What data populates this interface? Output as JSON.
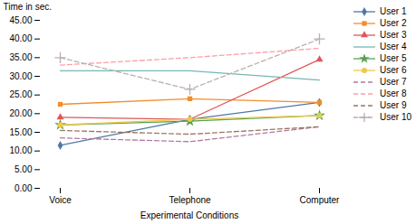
{
  "chart_data": {
    "type": "line",
    "categories": [
      "Voice",
      "Telephone",
      "Computer"
    ],
    "series": [
      {
        "name": "User 1",
        "values": [
          11.5,
          18.5,
          23.0
        ],
        "marker": "diamond",
        "line_style": "solid"
      },
      {
        "name": "User 2",
        "values": [
          22.5,
          24.0,
          23.0
        ],
        "marker": "square",
        "line_style": "solid"
      },
      {
        "name": "User 3",
        "values": [
          19.0,
          18.5,
          34.5
        ],
        "marker": "triangle",
        "line_style": "solid"
      },
      {
        "name": "User 4",
        "values": [
          31.5,
          31.5,
          29.0
        ],
        "marker": "none",
        "line_style": "solid"
      },
      {
        "name": "User 5",
        "values": [
          17.0,
          18.0,
          19.5
        ],
        "marker": "star",
        "line_style": "solid"
      },
      {
        "name": "User 6",
        "values": [
          17.0,
          18.5,
          19.5
        ],
        "marker": "circle",
        "line_style": "solid"
      },
      {
        "name": "User 7",
        "values": [
          13.5,
          12.5,
          16.5
        ],
        "marker": "none",
        "line_style": "dashed"
      },
      {
        "name": "User 8",
        "values": [
          33.0,
          35.0,
          37.5
        ],
        "marker": "none",
        "line_style": "dashed"
      },
      {
        "name": "User 9",
        "values": [
          15.5,
          14.5,
          16.5
        ],
        "marker": "none",
        "line_style": "dashed"
      },
      {
        "name": "User 10",
        "values": [
          35.0,
          26.5,
          40.0
        ],
        "marker": "plus",
        "line_style": "dashed"
      }
    ],
    "xlabel": "Experimental Conditions",
    "ylabel": "Time in sec.",
    "ylim": [
      0,
      45
    ],
    "yticks": [
      {
        "value": 0,
        "label": "0.00"
      },
      {
        "value": 5,
        "label": "5.00"
      },
      {
        "value": 10,
        "label": "10.00"
      },
      {
        "value": 15,
        "label": "15.00"
      },
      {
        "value": 20,
        "label": "20.00"
      },
      {
        "value": 25,
        "label": "25.00"
      },
      {
        "value": 30,
        "label": "30.00"
      },
      {
        "value": 35,
        "label": "35.00"
      },
      {
        "value": 40,
        "label": "40.00"
      },
      {
        "value": 45,
        "label": "45.00"
      }
    ],
    "grid": false,
    "legend": "right"
  }
}
